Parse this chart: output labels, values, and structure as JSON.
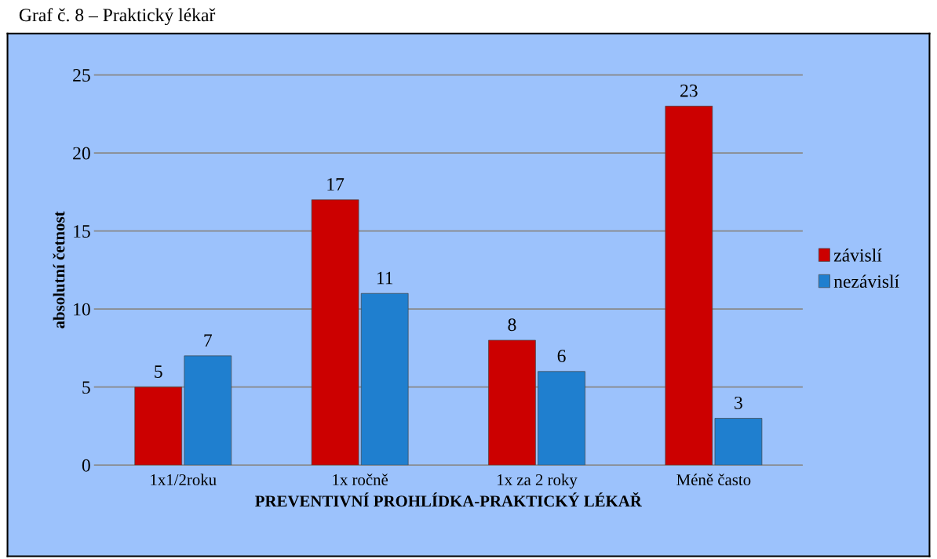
{
  "chart_data": {
    "type": "bar",
    "title": "Graf č. 8 – Praktický lékař",
    "xlabel": "PREVENTIVNÍ PROHLÍDKA-PRAKTICKÝ LÉKAŘ",
    "ylabel": "absolutní četnost",
    "categories": [
      "1x1/2roku",
      "1x ročně",
      "1x za 2 roky",
      "Méně často"
    ],
    "series": [
      {
        "name": "závislí",
        "color": "#cc0000",
        "values": [
          5,
          17,
          8,
          23
        ]
      },
      {
        "name": "nezávislí",
        "color": "#1f7fcf",
        "values": [
          7,
          11,
          6,
          3
        ]
      }
    ],
    "ylim": [
      0,
      25
    ],
    "yticks": [
      0,
      5,
      10,
      15,
      20,
      25
    ],
    "grid": "y",
    "legend": "right",
    "data_labels": true
  }
}
